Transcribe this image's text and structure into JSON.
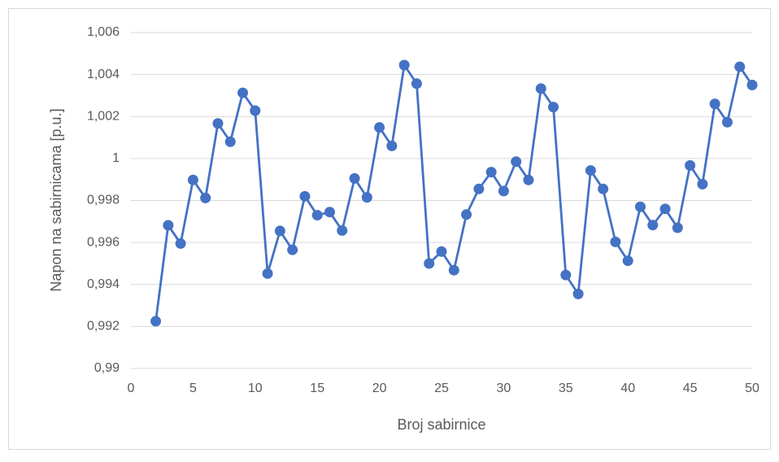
{
  "chart_data": {
    "type": "line",
    "x_label": "Broj sabirnice",
    "y_label": "Napon na sabirnicama [p.u.]",
    "x": [
      2,
      3,
      4,
      5,
      6,
      7,
      8,
      9,
      10,
      11,
      12,
      13,
      14,
      15,
      16,
      17,
      18,
      19,
      20,
      21,
      22,
      23,
      24,
      25,
      26,
      27,
      28,
      29,
      30,
      31,
      32,
      33,
      34,
      35,
      36,
      37,
      38,
      39,
      40,
      41,
      42,
      43,
      44,
      45,
      46,
      47,
      48,
      49,
      50
    ],
    "series": [
      {
        "color": "#4472c4",
        "values": [
          0.99225,
          0.99682,
          0.99595,
          0.99898,
          0.99812,
          1.00167,
          1.0008,
          1.00313,
          1.00228,
          0.99452,
          0.99655,
          0.99565,
          0.9982,
          0.9973,
          0.99745,
          0.99657,
          0.99905,
          0.99815,
          1.00148,
          1.0006,
          1.00445,
          1.00357,
          0.995,
          0.99557,
          0.99468,
          0.99733,
          0.99855,
          0.99935,
          0.99845,
          0.99985,
          0.99898,
          1.00333,
          1.00245,
          0.99445,
          0.99355,
          0.99943,
          0.99855,
          0.99603,
          0.99513,
          0.9977,
          0.99683,
          0.9976,
          0.9967,
          0.99967,
          0.99878,
          1.0026,
          1.00173,
          1.00437,
          1.0035
        ]
      }
    ],
    "xlim": [
      0,
      50
    ],
    "xticks": [
      0,
      5,
      10,
      15,
      20,
      25,
      30,
      35,
      40,
      45,
      50
    ],
    "ylim": [
      0.99,
      1.006
    ],
    "yticks": [
      {
        "value": 0.99,
        "label": "0,99"
      },
      {
        "value": 0.992,
        "label": "0,992"
      },
      {
        "value": 0.994,
        "label": "0,994"
      },
      {
        "value": 0.996,
        "label": "0,996"
      },
      {
        "value": 0.998,
        "label": "0,998"
      },
      1,
      {
        "value": 1.002,
        "label": "1,002"
      },
      {
        "value": 1.004,
        "label": "1,004"
      },
      {
        "value": 1.006,
        "label": "1,006"
      }
    ],
    "grid": true
  }
}
